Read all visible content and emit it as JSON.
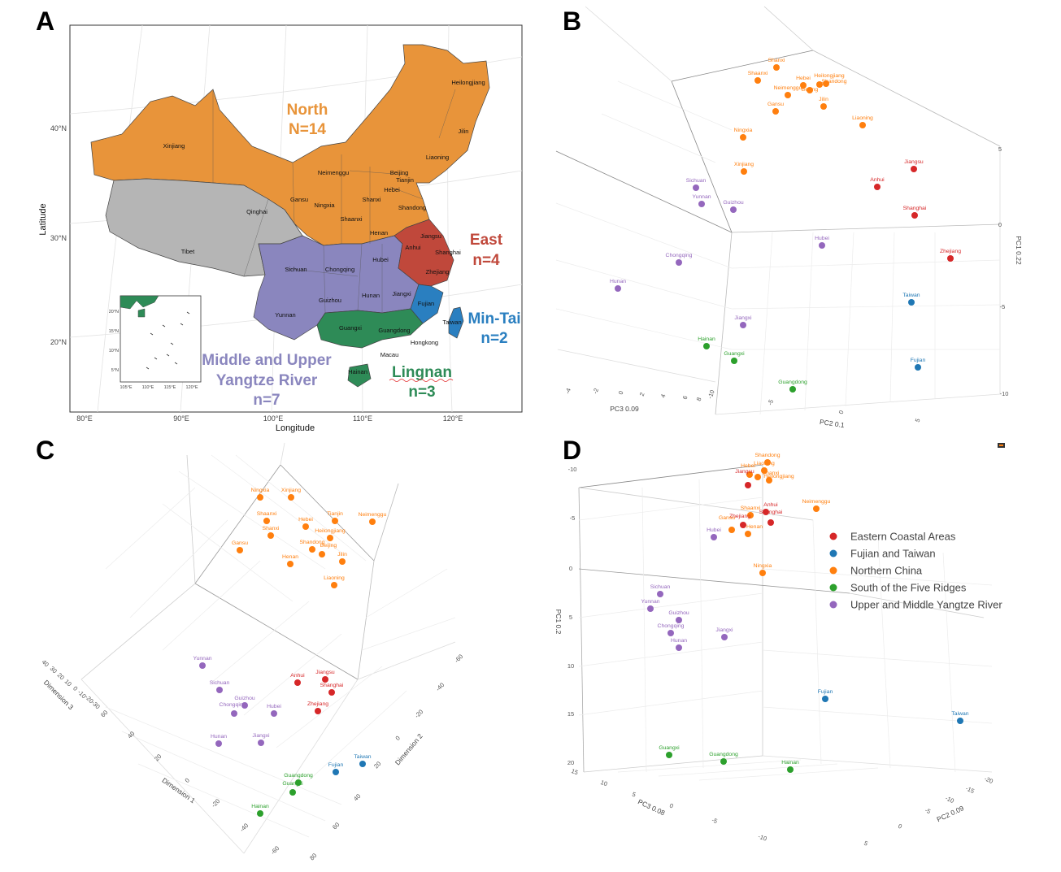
{
  "figure": {
    "panel_labels": [
      "A",
      "B",
      "C",
      "D"
    ]
  },
  "colors": {
    "north": "#e8943a",
    "east": "#c0483b",
    "mintai": "#2a7fc0",
    "lingnan": "#2e8b57",
    "yangtze": "#8a86be",
    "tibet_qinghai": "#b5b5b5",
    "cluster_eastern": "#d62728",
    "cluster_fujian": "#1f77b4",
    "cluster_northern": "#ff7f0e",
    "cluster_south": "#2ca02c",
    "cluster_yangtze": "#9467bd"
  },
  "chart_data": [
    {
      "panel": "A",
      "type": "map",
      "xlabel": "Longitude",
      "ylabel": "Latitude",
      "x_ticks": [
        "80°E",
        "90°E",
        "100°E",
        "110°E",
        "120°E"
      ],
      "y_ticks": [
        "40°N",
        "30°N",
        "20°N"
      ],
      "inset_x_ticks": [
        "105°E",
        "110°E",
        "115°E",
        "120°E"
      ],
      "inset_y_ticks": [
        "20°N",
        "15°N",
        "10°N",
        "5°N"
      ],
      "region_labels": [
        {
          "name": "North",
          "count": "N=14",
          "color": "north"
        },
        {
          "name": "East",
          "count": "n=4",
          "color": "east"
        },
        {
          "name": "Min-Tai",
          "count": "n=2",
          "color": "mintai"
        },
        {
          "name": "Lingnan",
          "count": "n=3",
          "color": "lingnan"
        },
        {
          "name": "Middle and Upper Yangtze River",
          "count": "n=7",
          "color": "yangtze"
        }
      ],
      "provinces": [
        {
          "name": "Heilongjiang",
          "group": "north"
        },
        {
          "name": "Jilin",
          "group": "north"
        },
        {
          "name": "Liaoning",
          "group": "north"
        },
        {
          "name": "Xinjiang",
          "group": "north"
        },
        {
          "name": "Neimenggu",
          "group": "north"
        },
        {
          "name": "Beijing",
          "group": "north"
        },
        {
          "name": "Tianjin",
          "group": "north"
        },
        {
          "name": "Hebei",
          "group": "north"
        },
        {
          "name": "Gansu",
          "group": "north"
        },
        {
          "name": "Ningxia",
          "group": "north"
        },
        {
          "name": "Shanxi",
          "group": "north"
        },
        {
          "name": "Shaanxi",
          "group": "north"
        },
        {
          "name": "Shandong",
          "group": "north"
        },
        {
          "name": "Henan",
          "group": "north"
        },
        {
          "name": "Qinghai",
          "group": "tibet_qinghai"
        },
        {
          "name": "Tibet",
          "group": "tibet_qinghai"
        },
        {
          "name": "Jiangsu",
          "group": "east"
        },
        {
          "name": "Anhui",
          "group": "east"
        },
        {
          "name": "Shanghai",
          "group": "east"
        },
        {
          "name": "Zhejiang",
          "group": "east"
        },
        {
          "name": "Sichuan",
          "group": "yangtze"
        },
        {
          "name": "Chongqing",
          "group": "yangtze"
        },
        {
          "name": "Hubei",
          "group": "yangtze"
        },
        {
          "name": "Hunan",
          "group": "yangtze"
        },
        {
          "name": "Guizhou",
          "group": "yangtze"
        },
        {
          "name": "Jiangxi",
          "group": "yangtze"
        },
        {
          "name": "Yunnan",
          "group": "yangtze"
        },
        {
          "name": "Fujian",
          "group": "mintai"
        },
        {
          "name": "Taiwan",
          "group": "mintai"
        },
        {
          "name": "Guangxi",
          "group": "lingnan"
        },
        {
          "name": "Guangdong",
          "group": "lingnan"
        },
        {
          "name": "Hongkong",
          "group": "lingnan"
        },
        {
          "name": "Macau",
          "group": "lingnan"
        },
        {
          "name": "Hainan",
          "group": "lingnan"
        }
      ]
    },
    {
      "panel": "B",
      "type": "scatter3d",
      "axis_labels": {
        "x": "PC3 0.09",
        "y": "PC2 0.1",
        "z": "PC1 0.22"
      },
      "x_ticks": [
        "-4",
        "-2",
        "0",
        "2",
        "4",
        "6",
        "8",
        "-10"
      ],
      "y_ticks": [
        "-5",
        "0",
        "5"
      ],
      "z_ticks": [
        "5",
        "0",
        "-5",
        "-10"
      ],
      "points": [
        {
          "label": "Shanxi",
          "group": "cluster_northern"
        },
        {
          "label": "Shaanxi",
          "group": "cluster_northern"
        },
        {
          "label": "Hebei",
          "group": "cluster_northern"
        },
        {
          "label": "Heilongjiang",
          "group": "cluster_northern"
        },
        {
          "label": "Neimenggu",
          "group": "cluster_northern"
        },
        {
          "label": "Shandong",
          "group": "cluster_northern"
        },
        {
          "label": "Beijing",
          "group": "cluster_northern"
        },
        {
          "label": "Gansu",
          "group": "cluster_northern"
        },
        {
          "label": "Jilin",
          "group": "cluster_northern"
        },
        {
          "label": "Liaoning",
          "group": "cluster_northern"
        },
        {
          "label": "Ningxia",
          "group": "cluster_northern"
        },
        {
          "label": "Xinjiang",
          "group": "cluster_northern"
        },
        {
          "label": "Jiangsu",
          "group": "cluster_eastern"
        },
        {
          "label": "Anhui",
          "group": "cluster_eastern"
        },
        {
          "label": "Shanghai",
          "group": "cluster_eastern"
        },
        {
          "label": "Zhejiang",
          "group": "cluster_eastern"
        },
        {
          "label": "Sichuan",
          "group": "cluster_yangtze"
        },
        {
          "label": "Yunnan",
          "group": "cluster_yangtze"
        },
        {
          "label": "Guizhou",
          "group": "cluster_yangtze"
        },
        {
          "label": "Hubei",
          "group": "cluster_yangtze"
        },
        {
          "label": "Chongqing",
          "group": "cluster_yangtze"
        },
        {
          "label": "Hunan",
          "group": "cluster_yangtze"
        },
        {
          "label": "Jiangxi",
          "group": "cluster_yangtze"
        },
        {
          "label": "Taiwan",
          "group": "cluster_fujian"
        },
        {
          "label": "Fujian",
          "group": "cluster_fujian"
        },
        {
          "label": "Hainan",
          "group": "cluster_south"
        },
        {
          "label": "Guangxi",
          "group": "cluster_south"
        },
        {
          "label": "Guangdong",
          "group": "cluster_south"
        }
      ]
    },
    {
      "panel": "C",
      "type": "scatter3d",
      "axis_labels": {
        "x": "Dimension 1",
        "y": "Dimension 2",
        "z": "Dimension 3"
      },
      "x_ticks": [
        "60",
        "40",
        "20",
        "0",
        "-20",
        "-40",
        "-60"
      ],
      "y_ticks": [
        "-60",
        "-40",
        "-20",
        "0",
        "20",
        "40",
        "60",
        "80"
      ],
      "z_ticks": [
        "40",
        "30",
        "20",
        "10",
        "0",
        "-10",
        "-20",
        "-30"
      ],
      "points": [
        {
          "label": "Ningxia",
          "group": "cluster_northern"
        },
        {
          "label": "Xinjiang",
          "group": "cluster_northern"
        },
        {
          "label": "Shaanxi",
          "group": "cluster_northern"
        },
        {
          "label": "Hebei",
          "group": "cluster_northern"
        },
        {
          "label": "Tianjin",
          "group": "cluster_northern"
        },
        {
          "label": "Neimenggu",
          "group": "cluster_northern"
        },
        {
          "label": "Shanxi",
          "group": "cluster_northern"
        },
        {
          "label": "Heilongjiang",
          "group": "cluster_northern"
        },
        {
          "label": "Gansu",
          "group": "cluster_northern"
        },
        {
          "label": "Shandong",
          "group": "cluster_northern"
        },
        {
          "label": "Beijing",
          "group": "cluster_northern"
        },
        {
          "label": "Henan",
          "group": "cluster_northern"
        },
        {
          "label": "Jilin",
          "group": "cluster_northern"
        },
        {
          "label": "Liaoning",
          "group": "cluster_northern"
        },
        {
          "label": "Yunnan",
          "group": "cluster_yangtze"
        },
        {
          "label": "Sichuan",
          "group": "cluster_yangtze"
        },
        {
          "label": "Guizhou",
          "group": "cluster_yangtze"
        },
        {
          "label": "Chongqing",
          "group": "cluster_yangtze"
        },
        {
          "label": "Hubei",
          "group": "cluster_yangtze"
        },
        {
          "label": "Hunan",
          "group": "cluster_yangtze"
        },
        {
          "label": "Jiangxi",
          "group": "cluster_yangtze"
        },
        {
          "label": "Anhui",
          "group": "cluster_eastern"
        },
        {
          "label": "Jiangsu",
          "group": "cluster_eastern"
        },
        {
          "label": "Shanghai",
          "group": "cluster_eastern"
        },
        {
          "label": "Zhejiang",
          "group": "cluster_eastern"
        },
        {
          "label": "Taiwan",
          "group": "cluster_fujian"
        },
        {
          "label": "Fujian",
          "group": "cluster_fujian"
        },
        {
          "label": "Guangdong",
          "group": "cluster_south"
        },
        {
          "label": "Guangxi",
          "group": "cluster_south"
        },
        {
          "label": "Hainan",
          "group": "cluster_south"
        }
      ]
    },
    {
      "panel": "D",
      "type": "scatter3d",
      "axis_labels": {
        "x": "PC3 0.08",
        "y": "PC2 0.09",
        "z": "PC1 0.2"
      },
      "x_ticks": [
        "15",
        "10",
        "5",
        "0",
        "-5",
        "-10"
      ],
      "y_ticks": [
        "-20",
        "-15",
        "-10",
        "-5",
        "0",
        "5"
      ],
      "z_ticks": [
        "-10",
        "-5",
        "0",
        "5",
        "10",
        "15",
        "20"
      ],
      "legend": [
        {
          "label": "Eastern Coastal Areas",
          "group": "cluster_eastern"
        },
        {
          "label": "Fujian and Taiwan",
          "group": "cluster_fujian"
        },
        {
          "label": "Northern China",
          "group": "cluster_northern"
        },
        {
          "label": "South of the Five Ridges",
          "group": "cluster_south"
        },
        {
          "label": "Upper and Middle Yangtze River",
          "group": "cluster_yangtze"
        }
      ],
      "points": [
        {
          "label": "Shandong",
          "group": "cluster_northern"
        },
        {
          "label": "Liaoning",
          "group": "cluster_northern"
        },
        {
          "label": "Hebei",
          "group": "cluster_northern"
        },
        {
          "label": "Jiangsu",
          "group": "cluster_eastern"
        },
        {
          "label": "Shanxi",
          "group": "cluster_northern"
        },
        {
          "label": "Heilongjiang",
          "group": "cluster_northern"
        },
        {
          "label": "Neimenggu",
          "group": "cluster_northern"
        },
        {
          "label": "Shaanxi",
          "group": "cluster_northern"
        },
        {
          "label": "Anhui",
          "group": "cluster_eastern"
        },
        {
          "label": "Zhejiang",
          "group": "cluster_eastern"
        },
        {
          "label": "Shanghai",
          "group": "cluster_eastern"
        },
        {
          "label": "Gansu",
          "group": "cluster_northern"
        },
        {
          "label": "Henan",
          "group": "cluster_northern"
        },
        {
          "label": "Hubei",
          "group": "cluster_yangtze"
        },
        {
          "label": "Ningxia",
          "group": "cluster_northern"
        },
        {
          "label": "Sichuan",
          "group": "cluster_yangtze"
        },
        {
          "label": "Yunnan",
          "group": "cluster_yangtze"
        },
        {
          "label": "Guizhou",
          "group": "cluster_yangtze"
        },
        {
          "label": "Chongqing",
          "group": "cluster_yangtze"
        },
        {
          "label": "Jiangxi",
          "group": "cluster_yangtze"
        },
        {
          "label": "Hunan",
          "group": "cluster_yangtze"
        },
        {
          "label": "Fujian",
          "group": "cluster_fujian"
        },
        {
          "label": "Taiwan",
          "group": "cluster_fujian"
        },
        {
          "label": "Guangxi",
          "group": "cluster_south"
        },
        {
          "label": "Guangdong",
          "group": "cluster_south"
        },
        {
          "label": "Hainan",
          "group": "cluster_south"
        }
      ]
    }
  ]
}
